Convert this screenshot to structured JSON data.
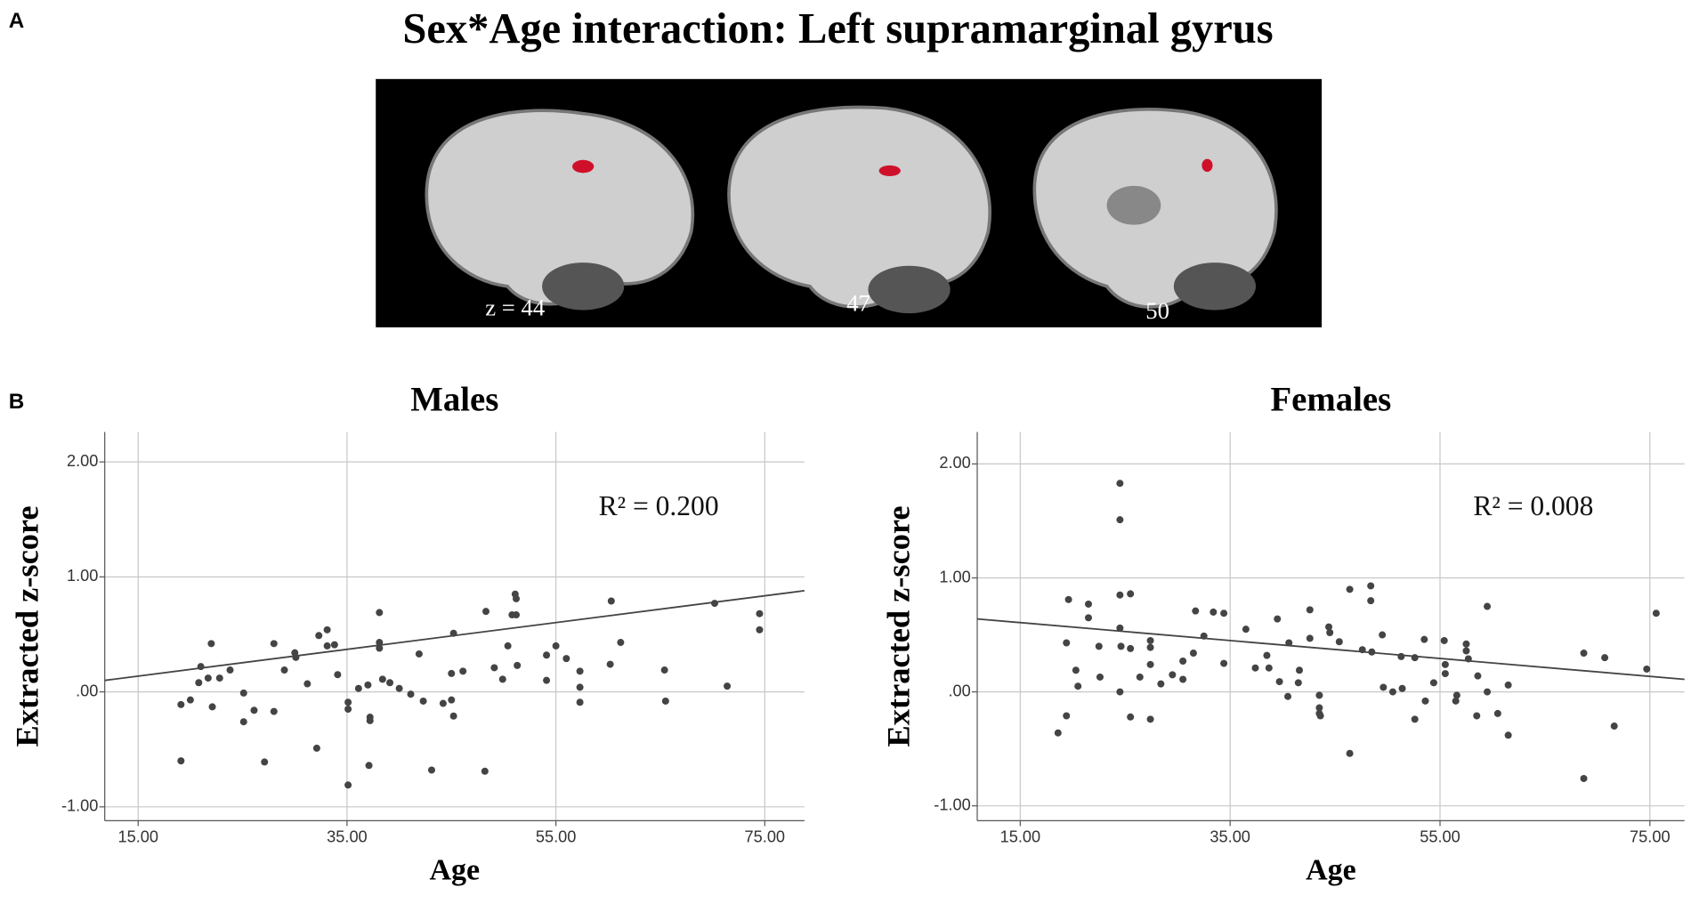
{
  "figure": {
    "panel_a": "A",
    "panel_b": "B",
    "title": "Sex*Age interaction: Left supramarginal gyrus",
    "slice_labels": [
      "z = 44",
      "47",
      "50"
    ]
  },
  "chart_data": [
    {
      "type": "scatter",
      "title": "Males",
      "x_label": "Age",
      "y_label": "Extracted z-score",
      "annotation": "R² = 0.200",
      "color": "#444444",
      "line_color": "#444444",
      "grid": true,
      "xlim": [
        11.8,
        78.8
      ],
      "ylim": [
        -1.12,
        2.26
      ],
      "xticks": [
        {
          "value": 15,
          "label": "15.00"
        },
        {
          "value": 35,
          "label": "35.00"
        },
        {
          "value": 55,
          "label": "55.00"
        },
        {
          "value": 75,
          "label": "75.00"
        }
      ],
      "yticks": [
        {
          "value": -1,
          "label": "-1.00"
        },
        {
          "value": 0,
          "label": ".00"
        },
        {
          "value": 1,
          "label": "1.00"
        },
        {
          "value": 2,
          "label": "2.00"
        }
      ],
      "trend_line": {
        "x": [
          11.8,
          78.8
        ],
        "y": [
          0.1,
          0.88
        ]
      },
      "x": [
        19.1,
        19.1,
        20.0,
        20.8,
        21.0,
        21.7,
        22.0,
        22.1,
        22.8,
        23.8,
        25.1,
        25.1,
        26.1,
        27.1,
        28.0,
        28.0,
        29.0,
        30.0,
        30.1,
        31.2,
        32.1,
        32.3,
        33.1,
        33.1,
        33.8,
        34.1,
        35.1,
        35.1,
        35.1,
        36.1,
        37.0,
        37.2,
        37.2,
        37.1,
        38.1,
        38.1,
        38.1,
        38.4,
        39.1,
        40.0,
        41.1,
        41.9,
        42.3,
        43.1,
        44.2,
        45.0,
        45.0,
        45.2,
        45.2,
        46.1,
        48.2,
        48.3,
        49.1,
        49.9,
        50.4,
        50.8,
        51.1,
        51.2,
        51.2,
        51.3,
        54.1,
        54.1,
        55.0,
        56.0,
        57.3,
        57.3,
        57.3,
        60.2,
        60.3,
        61.2,
        65.4,
        65.5,
        70.2,
        71.4,
        74.5,
        74.5
      ],
      "values": [
        -0.6,
        -0.11,
        -0.07,
        0.08,
        0.22,
        0.12,
        0.42,
        -0.13,
        0.12,
        0.19,
        -0.01,
        -0.26,
        -0.16,
        -0.61,
        0.42,
        -0.17,
        0.19,
        0.34,
        0.3,
        0.07,
        -0.49,
        0.49,
        0.54,
        0.4,
        0.41,
        0.15,
        -0.09,
        -0.15,
        -0.81,
        0.03,
        0.06,
        -0.22,
        -0.25,
        -0.64,
        0.43,
        0.38,
        0.69,
        0.11,
        0.08,
        0.03,
        -0.02,
        0.33,
        -0.08,
        -0.68,
        -0.1,
        0.16,
        -0.07,
        0.51,
        -0.21,
        0.18,
        -0.69,
        0.7,
        0.21,
        0.11,
        0.4,
        0.67,
        0.85,
        0.81,
        0.67,
        0.23,
        0.1,
        0.32,
        0.4,
        0.29,
        0.18,
        0.04,
        -0.09,
        0.24,
        0.79,
        0.43,
        0.19,
        -0.08,
        0.77,
        0.05,
        0.68,
        0.54
      ]
    },
    {
      "type": "scatter",
      "title": "Females",
      "x_label": "Age",
      "y_label": "Extracted z-score",
      "annotation": "R² = 0.008",
      "color": "#444444",
      "line_color": "#444444",
      "grid": true,
      "xlim": [
        10.9,
        78.3
      ],
      "ylim": [
        -1.13,
        2.28
      ],
      "xticks": [
        {
          "value": 15,
          "label": "15.00"
        },
        {
          "value": 35,
          "label": "35.00"
        },
        {
          "value": 55,
          "label": "55.00"
        },
        {
          "value": 75,
          "label": "75.00"
        }
      ],
      "yticks": [
        {
          "value": -1,
          "label": "-1.00"
        },
        {
          "value": 0,
          "label": ".00"
        },
        {
          "value": 1,
          "label": "1.00"
        },
        {
          "value": 2,
          "label": "2.00"
        }
      ],
      "trend_line": {
        "x": [
          10.9,
          78.3
        ],
        "y": [
          0.64,
          0.11
        ]
      },
      "x": [
        18.6,
        19.4,
        19.4,
        19.6,
        20.3,
        20.5,
        21.5,
        21.5,
        22.5,
        22.6,
        24.5,
        24.5,
        24.5,
        24.5,
        24.6,
        24.5,
        25.5,
        25.5,
        25.5,
        26.4,
        27.4,
        27.4,
        27.4,
        27.4,
        28.4,
        29.5,
        30.5,
        30.5,
        31.5,
        31.7,
        32.5,
        33.4,
        34.4,
        34.4,
        36.5,
        37.4,
        38.5,
        38.7,
        39.5,
        39.7,
        40.5,
        40.6,
        41.5,
        41.6,
        42.6,
        42.6,
        43.5,
        43.5,
        43.5,
        43.6,
        44.4,
        44.5,
        45.4,
        46.4,
        46.4,
        47.6,
        48.4,
        48.4,
        48.5,
        49.5,
        49.6,
        50.5,
        51.3,
        51.4,
        52.6,
        52.6,
        53.5,
        53.6,
        54.4,
        55.4,
        55.5,
        55.5,
        56.5,
        56.6,
        57.5,
        57.5,
        57.7,
        58.5,
        58.6,
        59.5,
        59.5,
        60.5,
        61.5,
        61.5,
        68.7,
        68.7,
        70.7,
        71.6,
        74.7,
        75.6
      ],
      "values": [
        -0.36,
        -0.21,
        0.43,
        0.81,
        0.19,
        0.05,
        0.77,
        0.65,
        0.4,
        0.13,
        1.83,
        1.51,
        0.85,
        0.56,
        0.4,
        0.0,
        0.86,
        0.38,
        -0.22,
        0.13,
        0.45,
        0.39,
        0.24,
        -0.24,
        0.07,
        0.15,
        0.11,
        0.27,
        0.34,
        0.71,
        0.49,
        0.7,
        0.69,
        0.25,
        0.55,
        0.21,
        0.32,
        0.21,
        0.64,
        0.09,
        -0.04,
        0.43,
        0.08,
        0.19,
        0.72,
        0.47,
        -0.03,
        -0.14,
        -0.19,
        -0.21,
        0.57,
        0.52,
        0.44,
        0.9,
        -0.54,
        0.37,
        0.93,
        0.8,
        0.35,
        0.5,
        0.04,
        0.0,
        0.31,
        0.03,
        0.3,
        -0.24,
        0.46,
        -0.08,
        0.08,
        0.45,
        0.16,
        0.24,
        -0.08,
        -0.03,
        0.42,
        0.36,
        0.29,
        -0.21,
        0.14,
        0.75,
        0.0,
        -0.19,
        -0.38,
        0.06,
        0.34,
        -0.76,
        0.3,
        -0.3,
        0.2,
        0.69
      ]
    }
  ]
}
